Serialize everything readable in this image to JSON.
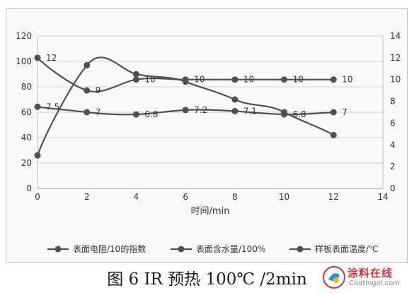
{
  "chart_data": {
    "type": "line",
    "xlabel": "时间/min",
    "xlim": [
      0,
      14
    ],
    "x_ticks": [
      0,
      2,
      4,
      6,
      8,
      10,
      12,
      14
    ],
    "y_left_lim": [
      0,
      120
    ],
    "y_left_ticks": [
      0,
      20,
      40,
      60,
      80,
      100,
      120
    ],
    "y_right_lim": [
      0,
      14
    ],
    "y_right_ticks": [
      0,
      2,
      4,
      6,
      8,
      10,
      12,
      14
    ],
    "grid": true,
    "legend_position": "bottom",
    "series": [
      {
        "name": "表面电阻/10的指数",
        "axis": "right",
        "x": [
          0,
          2,
          4,
          6,
          8,
          10,
          12
        ],
        "y": [
          12,
          9,
          10,
          10,
          10,
          10,
          10
        ],
        "labels": [
          "12",
          "9",
          "10",
          "10",
          "10",
          "10",
          "10"
        ]
      },
      {
        "name": "表面含水量/100%",
        "axis": "right",
        "x": [
          0,
          2,
          4,
          6,
          8,
          10,
          12
        ],
        "y": [
          7.5,
          7,
          6.8,
          7.2,
          7.1,
          6.8,
          7
        ],
        "labels": [
          "7.5",
          "7",
          "6.8",
          "7.2",
          "7.1",
          "6.8",
          "7"
        ]
      },
      {
        "name": "样板表面温度/℃",
        "axis": "left",
        "x": [
          0,
          2,
          4,
          6,
          8,
          10,
          12
        ],
        "y": [
          26,
          97,
          90,
          84,
          70,
          60,
          42
        ],
        "labels": []
      }
    ]
  },
  "caption": "图 6 IR 预热 100℃ /2min",
  "watermark": {
    "title": "涂料在线",
    "url": "Coatingol.com"
  },
  "colors": {
    "line": "#505050",
    "grid": "#d0d0d0",
    "text": "#333333",
    "watermark_red": "#d8333a"
  }
}
